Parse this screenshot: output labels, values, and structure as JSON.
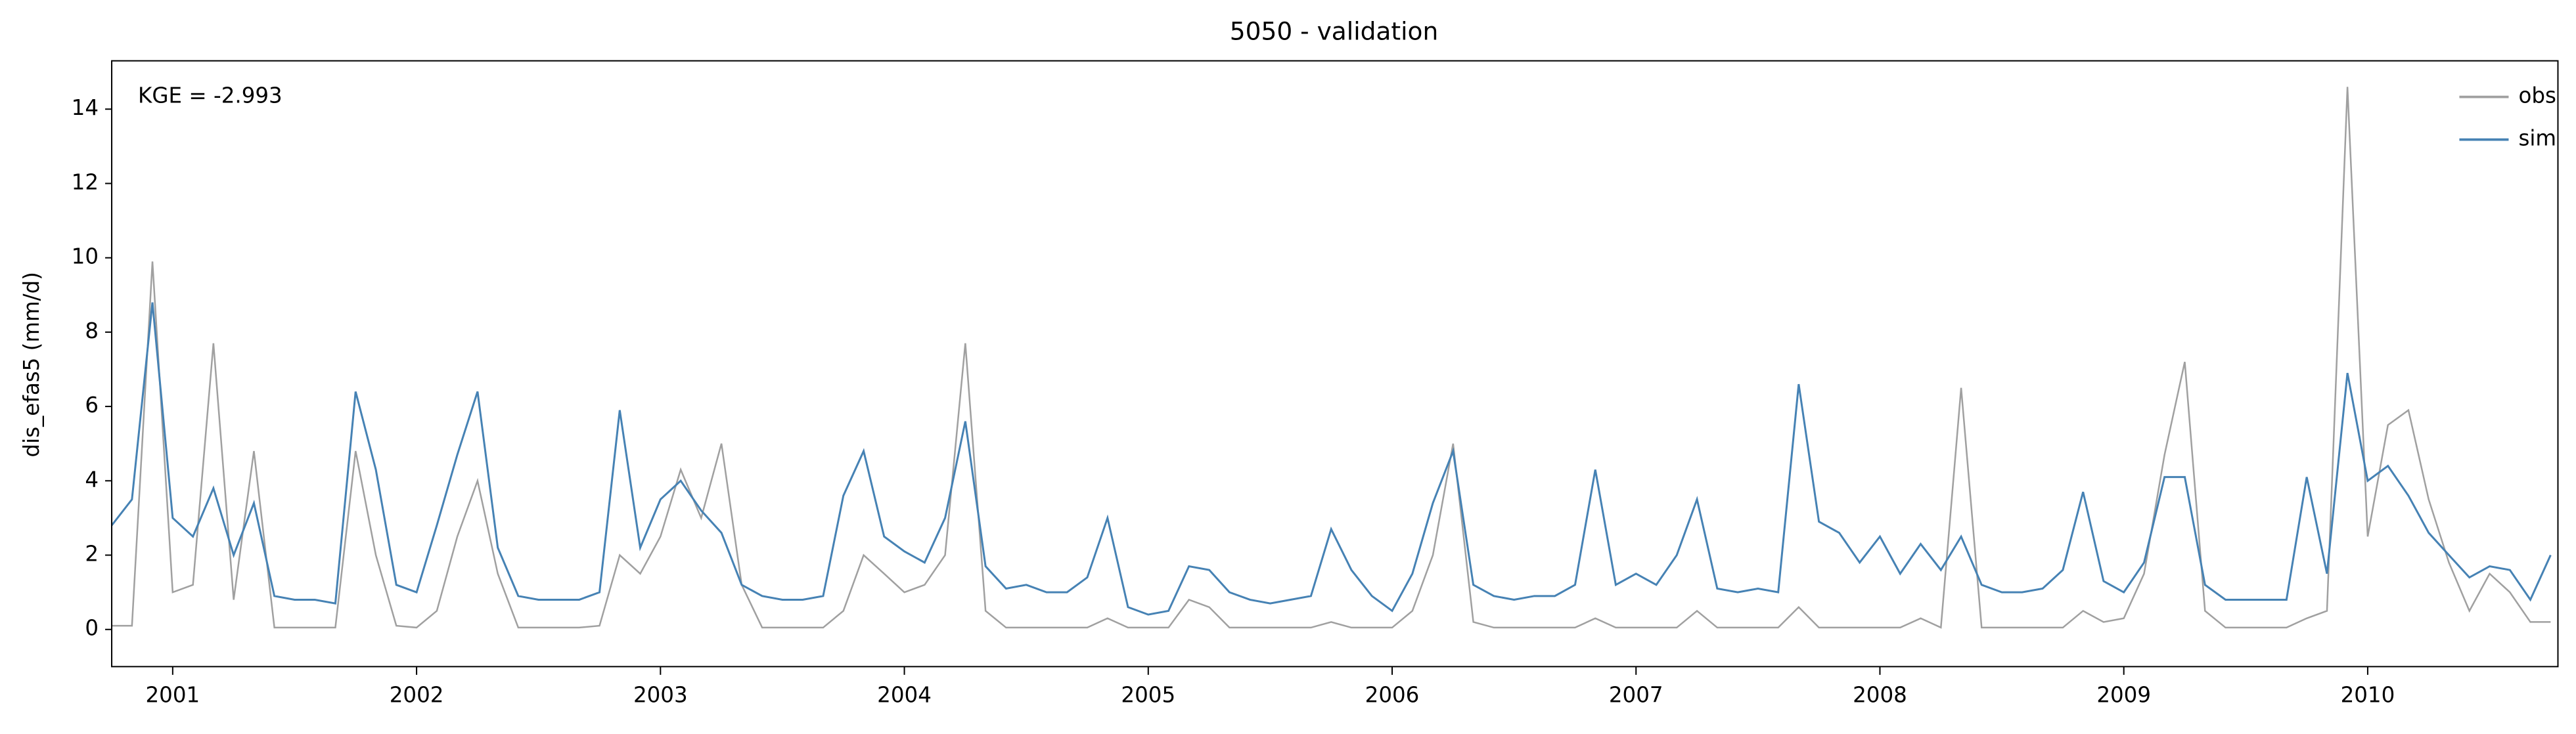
{
  "chart_data": {
    "type": "line",
    "title": "5050 - validation",
    "y_label": "dis_efas5 (mm/d)",
    "annotation": "KGE = -2.993",
    "legend": "upper right",
    "grid": false,
    "xlim": [
      2000.75,
      2010.78
    ],
    "ylim": [
      -1,
      15.3
    ],
    "yticks": [
      0,
      2,
      4,
      6,
      8,
      10,
      12,
      14
    ],
    "xticks": [
      2001,
      2002,
      2003,
      2004,
      2005,
      2006,
      2007,
      2008,
      2009,
      2010
    ],
    "x": [
      2000.75,
      2000.833,
      2000.917,
      2001.0,
      2001.083,
      2001.167,
      2001.25,
      2001.333,
      2001.417,
      2001.5,
      2001.583,
      2001.667,
      2001.75,
      2001.833,
      2001.917,
      2002.0,
      2002.083,
      2002.167,
      2002.25,
      2002.333,
      2002.417,
      2002.5,
      2002.583,
      2002.667,
      2002.75,
      2002.833,
      2002.917,
      2003.0,
      2003.083,
      2003.167,
      2003.25,
      2003.333,
      2003.417,
      2003.5,
      2003.583,
      2003.667,
      2003.75,
      2003.833,
      2003.917,
      2004.0,
      2004.083,
      2004.167,
      2004.25,
      2004.333,
      2004.417,
      2004.5,
      2004.583,
      2004.667,
      2004.75,
      2004.833,
      2004.917,
      2005.0,
      2005.083,
      2005.167,
      2005.25,
      2005.333,
      2005.417,
      2005.5,
      2005.583,
      2005.667,
      2005.75,
      2005.833,
      2005.917,
      2006.0,
      2006.083,
      2006.167,
      2006.25,
      2006.333,
      2006.417,
      2006.5,
      2006.583,
      2006.667,
      2006.75,
      2006.833,
      2006.917,
      2007.0,
      2007.083,
      2007.167,
      2007.25,
      2007.333,
      2007.417,
      2007.5,
      2007.583,
      2007.667,
      2007.75,
      2007.833,
      2007.917,
      2008.0,
      2008.083,
      2008.167,
      2008.25,
      2008.333,
      2008.417,
      2008.5,
      2008.583,
      2008.667,
      2008.75,
      2008.833,
      2008.917,
      2009.0,
      2009.083,
      2009.167,
      2009.25,
      2009.333,
      2009.417,
      2009.5,
      2009.583,
      2009.667,
      2009.75,
      2009.833,
      2009.917,
      2010.0,
      2010.083,
      2010.167,
      2010.25,
      2010.333,
      2010.417,
      2010.5,
      2010.583,
      2010.667,
      2010.75
    ],
    "series": [
      {
        "name": "obs",
        "color": "#a0a0a0",
        "values": [
          0.1,
          0.1,
          9.9,
          1.0,
          1.2,
          7.7,
          0.8,
          4.8,
          0.05,
          0.05,
          0.05,
          0.05,
          4.8,
          2.0,
          0.1,
          0.05,
          0.5,
          2.5,
          4.0,
          1.5,
          0.05,
          0.05,
          0.05,
          0.05,
          0.1,
          2.0,
          1.5,
          2.5,
          4.3,
          3.0,
          5.0,
          1.2,
          0.05,
          0.05,
          0.05,
          0.05,
          0.5,
          2.0,
          1.5,
          1.0,
          1.2,
          2.0,
          7.7,
          0.5,
          0.05,
          0.05,
          0.05,
          0.05,
          0.05,
          0.3,
          0.05,
          0.05,
          0.05,
          0.8,
          0.6,
          0.05,
          0.05,
          0.05,
          0.05,
          0.05,
          0.2,
          0.05,
          0.05,
          0.05,
          0.5,
          2.0,
          5.0,
          0.2,
          0.05,
          0.05,
          0.05,
          0.05,
          0.05,
          0.3,
          0.05,
          0.05,
          0.05,
          0.05,
          0.5,
          0.05,
          0.05,
          0.05,
          0.05,
          0.6,
          0.05,
          0.05,
          0.05,
          0.05,
          0.05,
          0.3,
          0.05,
          6.5,
          0.05,
          0.05,
          0.05,
          0.05,
          0.05,
          0.5,
          0.2,
          0.3,
          1.5,
          4.7,
          7.2,
          0.5,
          0.05,
          0.05,
          0.05,
          0.05,
          0.3,
          0.5,
          14.6,
          2.5,
          5.5,
          5.9,
          3.5,
          1.8,
          0.5,
          1.5,
          1.0,
          0.2,
          0.2
        ]
      },
      {
        "name": "sim",
        "color": "#4682b4",
        "values": [
          2.8,
          3.5,
          8.8,
          3.0,
          2.5,
          3.8,
          2.0,
          3.4,
          0.9,
          0.8,
          0.8,
          0.7,
          6.4,
          4.3,
          1.2,
          1.0,
          2.8,
          4.7,
          6.4,
          2.2,
          0.9,
          0.8,
          0.8,
          0.8,
          1.0,
          5.9,
          2.2,
          3.5,
          4.0,
          3.2,
          2.6,
          1.2,
          0.9,
          0.8,
          0.8,
          0.9,
          3.6,
          4.8,
          2.5,
          2.1,
          1.8,
          3.0,
          5.6,
          1.7,
          1.1,
          1.2,
          1.0,
          1.0,
          1.4,
          3.0,
          0.6,
          0.4,
          0.5,
          1.7,
          1.6,
          1.0,
          0.8,
          0.7,
          0.8,
          0.9,
          2.7,
          1.6,
          0.9,
          0.5,
          1.5,
          3.4,
          4.8,
          1.2,
          0.9,
          0.8,
          0.9,
          0.9,
          1.2,
          4.3,
          1.2,
          1.5,
          1.2,
          2.0,
          3.5,
          1.1,
          1.0,
          1.1,
          1.0,
          6.6,
          2.9,
          2.6,
          1.8,
          2.5,
          1.5,
          2.3,
          1.6,
          2.5,
          1.2,
          1.0,
          1.0,
          1.1,
          1.6,
          3.7,
          1.3,
          1.0,
          1.8,
          4.1,
          4.1,
          1.2,
          0.8,
          0.8,
          0.8,
          0.8,
          4.1,
          1.5,
          6.9,
          4.0,
          4.4,
          3.6,
          2.6,
          2.0,
          1.4,
          1.7,
          1.6,
          0.8,
          2.0
        ]
      }
    ]
  }
}
